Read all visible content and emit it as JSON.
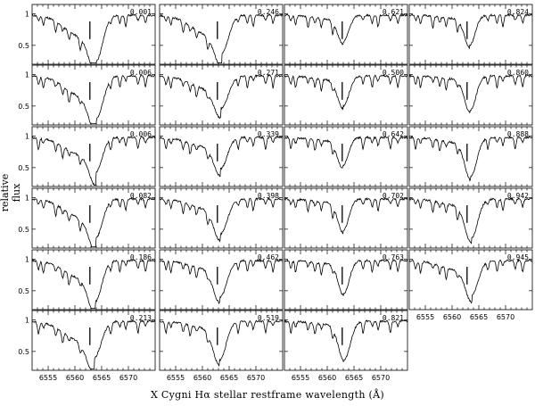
{
  "chart_data": {
    "type": "line",
    "title": "",
    "xlabel": "X Cygni  Hα   stellar restframe  wavelength (Å)",
    "ylabel": "relative flux",
    "xlim": [
      6552,
      6575
    ],
    "ylim": [
      0.2,
      1.15
    ],
    "xticks": [
      6555,
      6560,
      6565,
      6570
    ],
    "yticks": [
      0.5,
      1
    ],
    "marker_wavelength": 6562.8,
    "panels": [
      {
        "phase": "0.001",
        "depth": 0.72,
        "center": 6564.0,
        "width": 2.4,
        "blue_wing": 0.35
      },
      {
        "phase": "0.006",
        "depth": 0.68,
        "center": 6564.0,
        "width": 2.5,
        "blue_wing": 0.33
      },
      {
        "phase": "0.006",
        "depth": 0.55,
        "center": 6563.9,
        "width": 2.3,
        "blue_wing": 0.28
      },
      {
        "phase": "0.082",
        "depth": 0.62,
        "center": 6563.9,
        "width": 2.4,
        "blue_wing": 0.3
      },
      {
        "phase": "0.186",
        "depth": 0.65,
        "center": 6563.8,
        "width": 2.4,
        "blue_wing": 0.28
      },
      {
        "phase": "0.213",
        "depth": 0.58,
        "center": 6563.6,
        "width": 2.6,
        "blue_wing": 0.3
      },
      {
        "phase": "0.246",
        "depth": 0.6,
        "center": 6563.6,
        "width": 2.5,
        "blue_wing": 0.3
      },
      {
        "phase": "0.271",
        "depth": 0.52,
        "center": 6563.5,
        "width": 2.6,
        "blue_wing": 0.2
      },
      {
        "phase": "0.339",
        "depth": 0.5,
        "center": 6563.4,
        "width": 2.4,
        "blue_wing": 0.15
      },
      {
        "phase": "0.398",
        "depth": 0.55,
        "center": 6563.4,
        "width": 2.5,
        "blue_wing": 0.15
      },
      {
        "phase": "0.462",
        "depth": 0.58,
        "center": 6563.3,
        "width": 2.5,
        "blue_wing": 0.12
      },
      {
        "phase": "0.519",
        "depth": 0.62,
        "center": 6563.2,
        "width": 2.4,
        "blue_wing": 0.1
      },
      {
        "phase": "0.621",
        "depth": 0.42,
        "center": 6563.0,
        "width": 2.0,
        "blue_wing": 0.06
      },
      {
        "phase": "0.500",
        "depth": 0.48,
        "center": 6563.0,
        "width": 2.1,
        "blue_wing": 0.06
      },
      {
        "phase": "0.642",
        "depth": 0.45,
        "center": 6562.9,
        "width": 2.0,
        "blue_wing": 0.05
      },
      {
        "phase": "0.702",
        "depth": 0.5,
        "center": 6563.0,
        "width": 2.0,
        "blue_wing": 0.05
      },
      {
        "phase": "0.763",
        "depth": 0.52,
        "center": 6563.1,
        "width": 2.0,
        "blue_wing": 0.05
      },
      {
        "phase": "0.821",
        "depth": 0.6,
        "center": 6563.2,
        "width": 2.2,
        "blue_wing": 0.05
      },
      {
        "phase": "0.824",
        "depth": 0.48,
        "center": 6563.3,
        "width": 2.0,
        "blue_wing": 0.05
      },
      {
        "phase": "0.860",
        "depth": 0.55,
        "center": 6563.4,
        "width": 2.1,
        "blue_wing": 0.05
      },
      {
        "phase": "0.888",
        "depth": 0.62,
        "center": 6563.5,
        "width": 2.2,
        "blue_wing": 0.08
      },
      {
        "phase": "0.942",
        "depth": 0.62,
        "center": 6563.6,
        "width": 2.3,
        "blue_wing": 0.1
      },
      {
        "phase": "0.945",
        "depth": 0.55,
        "center": 6563.7,
        "width": 2.3,
        "blue_wing": 0.15
      }
    ]
  }
}
